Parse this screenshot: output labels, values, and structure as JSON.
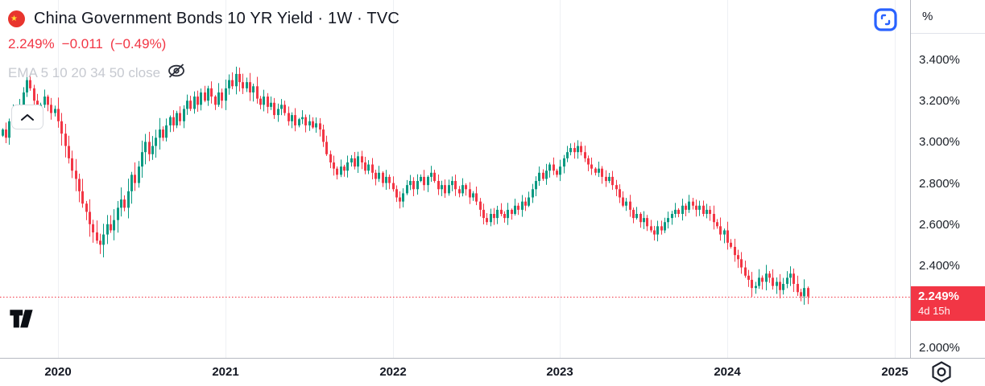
{
  "header": {
    "symbol_title": "China Government Bonds 10 YR Yield · 1W · TVC",
    "last_price": "2.249%",
    "change": "−0.011",
    "change_percent": "(−0.49%)",
    "indicator_label": "EMA 5 10 20 34 50 close"
  },
  "price_axis": {
    "unit_label": "%",
    "ticks": [
      "3.400%",
      "3.200%",
      "3.000%",
      "2.800%",
      "2.600%",
      "2.400%",
      "2.000%"
    ],
    "tick_values": [
      3.4,
      3.2,
      3.0,
      2.8,
      2.6,
      2.4,
      2.0
    ],
    "last_label": "2.249%",
    "countdown": "4d 15h",
    "last_value": 2.249
  },
  "time_axis": {
    "ticks": [
      "2020",
      "2021",
      "2022",
      "2023",
      "2024",
      "2025"
    ],
    "tick_years": [
      2020,
      2021,
      2022,
      2023,
      2024,
      2025
    ]
  },
  "colors": {
    "accent_blue": "#2962ff",
    "text": "#131722",
    "muted_text": "#c6c9d0",
    "change_red": "#f23645",
    "grid": "#eef0f4",
    "axis_border": "#b6b9c1"
  },
  "chart_data": {
    "type": "candlestick",
    "title": "China Government Bonds 10 YR Yield",
    "timeframe": "1W",
    "exchange": "TVC",
    "y_unit": "%",
    "ylim": [
      1.95,
      3.69
    ],
    "x_tick_years": [
      2020,
      2021,
      2022,
      2023,
      2024,
      2025
    ],
    "candles_per_year": 48,
    "candles_before_2020": 16,
    "last_close": 2.249,
    "up_color": "#089981",
    "down_color": "#f23645",
    "weekly_closes": [
      3.06,
      3.02,
      3.1,
      3.15,
      3.12,
      3.18,
      3.24,
      3.3,
      3.26,
      3.2,
      3.15,
      3.18,
      3.22,
      3.18,
      3.14,
      3.16,
      3.1,
      3.04,
      2.98,
      2.92,
      2.86,
      2.82,
      2.76,
      2.7,
      2.66,
      2.6,
      2.56,
      2.52,
      2.5,
      2.55,
      2.6,
      2.57,
      2.62,
      2.68,
      2.72,
      2.68,
      2.76,
      2.84,
      2.8,
      2.88,
      2.95,
      3.0,
      2.94,
      2.98,
      3.02,
      3.06,
      3.02,
      3.08,
      3.12,
      3.08,
      3.14,
      3.1,
      3.16,
      3.2,
      3.16,
      3.22,
      3.18,
      3.24,
      3.2,
      3.26,
      3.22,
      3.18,
      3.24,
      3.2,
      3.26,
      3.3,
      3.27,
      3.33,
      3.29,
      3.26,
      3.29,
      3.24,
      3.27,
      3.21,
      3.18,
      3.22,
      3.17,
      3.19,
      3.13,
      3.16,
      3.18,
      3.14,
      3.1,
      3.13,
      3.08,
      3.11,
      3.12,
      3.08,
      3.1,
      3.07,
      3.09,
      3.06,
      3.0,
      2.94,
      2.9,
      2.87,
      2.84,
      2.88,
      2.86,
      2.9,
      2.92,
      2.88,
      2.93,
      2.9,
      2.86,
      2.89,
      2.85,
      2.82,
      2.85,
      2.8,
      2.83,
      2.8,
      2.77,
      2.73,
      2.71,
      2.75,
      2.79,
      2.81,
      2.77,
      2.81,
      2.83,
      2.79,
      2.83,
      2.85,
      2.81,
      2.77,
      2.79,
      2.75,
      2.79,
      2.81,
      2.77,
      2.75,
      2.79,
      2.77,
      2.73,
      2.75,
      2.71,
      2.67,
      2.63,
      2.61,
      2.65,
      2.63,
      2.67,
      2.65,
      2.63,
      2.67,
      2.65,
      2.69,
      2.67,
      2.71,
      2.69,
      2.73,
      2.77,
      2.81,
      2.85,
      2.82,
      2.86,
      2.89,
      2.86,
      2.84,
      2.88,
      2.92,
      2.95,
      2.97,
      2.95,
      2.98,
      2.95,
      2.92,
      2.89,
      2.87,
      2.85,
      2.87,
      2.83,
      2.81,
      2.83,
      2.79,
      2.77,
      2.73,
      2.69,
      2.71,
      2.67,
      2.63,
      2.65,
      2.61,
      2.63,
      2.59,
      2.57,
      2.55,
      2.59,
      2.57,
      2.61,
      2.63,
      2.65,
      2.67,
      2.65,
      2.69,
      2.67,
      2.71,
      2.69,
      2.67,
      2.69,
      2.65,
      2.67,
      2.65,
      2.61,
      2.59,
      2.55,
      2.57,
      2.51,
      2.49,
      2.45,
      2.43,
      2.39,
      2.35,
      2.33,
      2.29,
      2.3,
      2.34,
      2.32,
      2.36,
      2.34,
      2.3,
      2.32,
      2.28,
      2.31,
      2.34,
      2.36,
      2.31,
      2.27,
      2.25,
      2.29,
      2.249
    ]
  }
}
